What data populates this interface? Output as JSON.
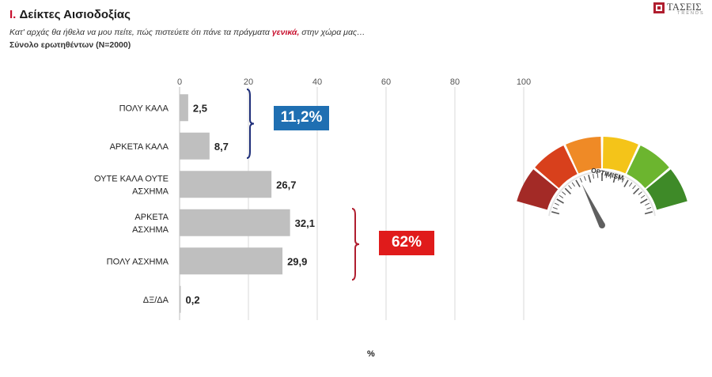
{
  "header": {
    "title_num": "I.",
    "title_text": "Δείκτες Αισιοδοξίας",
    "question_pre": "Κατ' αρχάς θα ήθελα να μου πείτε, πώς πιστεύετε ότι πάνε τα πράγματα",
    "question_em": "γενικά,",
    "question_post": "στην χώρα μας…",
    "base": "Σύνολο ερωτηθέντων (N=2000)"
  },
  "logo": {
    "name": "ΤΑΣΕΙΣ",
    "sub": "TRENDS"
  },
  "chart_data": {
    "type": "bar",
    "orientation": "horizontal",
    "categories": [
      [
        "ΠΟΛΥ ΚΑΛΑ"
      ],
      [
        "ΑΡΚΕΤΑ ΚΑΛΑ"
      ],
      [
        "ΟΥΤΕ ΚΑΛΑ ΟΥΤΕ",
        "ΑΣΧΗΜΑ"
      ],
      [
        "ΑΡΚΕΤΑ",
        "ΑΣΧΗΜΑ"
      ],
      [
        "ΠΟΛΥ ΑΣΧΗΜΑ"
      ],
      [
        "ΔΞ/ΔΑ"
      ]
    ],
    "values": [
      2.5,
      8.7,
      26.7,
      32.1,
      29.9,
      0.2
    ],
    "value_labels": [
      "2,5",
      "8,7",
      "26,7",
      "32,1",
      "29,9",
      "0,2"
    ],
    "xlim": [
      0,
      100
    ],
    "xticks": [
      0,
      20,
      40,
      60,
      80,
      100
    ],
    "xlabel": "%",
    "grid": true,
    "bar_color": "#bfbfbf",
    "groups": [
      {
        "label": "11,2%",
        "rows": [
          0,
          1
        ],
        "color": "#1f6fb2",
        "bracket_color": "#1f2f7a"
      },
      {
        "label": "62%",
        "rows": [
          3,
          4
        ],
        "color": "#e01b1b",
        "bracket_color": "#b01e2f"
      }
    ]
  },
  "gauge": {
    "label": "OPTIMISM",
    "colors": [
      "#a32a26",
      "#d8401c",
      "#ef8a26",
      "#f4c419",
      "#6cb52f",
      "#3e8a28"
    ],
    "needle_color": "#5f5f5f"
  }
}
